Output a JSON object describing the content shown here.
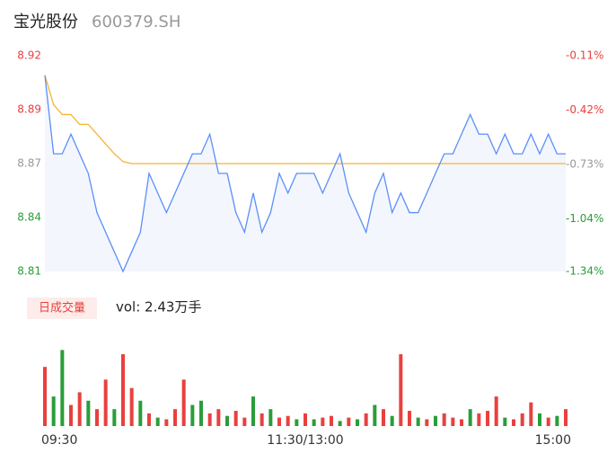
{
  "header": {
    "title": "宝光股份",
    "code": "600379.SH"
  },
  "chart_data": [
    {
      "type": "line",
      "x": [
        0,
        4,
        8,
        12,
        16,
        20,
        24,
        28,
        32,
        36,
        40,
        44,
        48,
        52,
        56,
        60,
        64,
        68,
        72,
        76,
        80,
        84,
        88,
        92,
        96,
        100,
        104,
        108,
        112,
        116,
        120,
        124,
        128,
        132,
        136,
        140,
        144,
        148,
        152,
        156,
        160,
        164,
        168,
        172,
        176,
        180,
        184,
        188,
        192,
        196,
        200,
        204,
        208,
        212,
        216,
        220,
        224,
        228,
        232,
        236,
        240
      ],
      "xlim": [
        0,
        240
      ],
      "ylim": [
        8.81,
        8.92
      ],
      "yticks": [
        {
          "value": 8.92,
          "label": "8.92"
        },
        {
          "value": 8.8925,
          "label": "8.89"
        },
        {
          "value": 8.865,
          "label": "8.87"
        },
        {
          "value": 8.8375,
          "label": "8.84"
        },
        {
          "value": 8.81,
          "label": "8.81"
        }
      ],
      "y2lim": [
        -1.34,
        -0.11
      ],
      "y2ticks": [
        {
          "value": -0.11,
          "label": "-0.11%"
        },
        {
          "value": -0.42,
          "label": "-0.42%"
        },
        {
          "value": -0.73,
          "label": "-0.73%"
        },
        {
          "value": -1.04,
          "label": "-1.04%"
        },
        {
          "value": -1.34,
          "label": "-1.34%"
        }
      ],
      "tick_colors": [
        "#e8413e",
        "#e8413e",
        "#999999",
        "#2a9d3a",
        "#2a9d3a"
      ],
      "area_color": "#f3f6fd",
      "series": [
        {
          "color": "#5b8ff9",
          "values": [
            8.91,
            8.87,
            8.87,
            8.88,
            8.87,
            8.86,
            8.84,
            8.83,
            8.82,
            8.81,
            8.82,
            8.83,
            8.86,
            8.85,
            8.84,
            8.85,
            8.86,
            8.87,
            8.87,
            8.88,
            8.86,
            8.86,
            8.84,
            8.83,
            8.85,
            8.83,
            8.84,
            8.86,
            8.85,
            8.86,
            8.86,
            8.86,
            8.85,
            8.86,
            8.87,
            8.85,
            8.84,
            8.83,
            8.85,
            8.86,
            8.84,
            8.85,
            8.84,
            8.84,
            8.85,
            8.86,
            8.87,
            8.87,
            8.88,
            8.89,
            8.88,
            8.88,
            8.87,
            8.88,
            8.87,
            8.87,
            8.88,
            8.87,
            8.88,
            8.87,
            8.87
          ]
        },
        {
          "color": "#f5b335",
          "values": [
            8.91,
            8.895,
            8.89,
            8.89,
            8.885,
            8.885,
            8.88,
            8.875,
            8.87,
            8.866,
            8.865,
            8.865,
            8.865,
            8.865,
            8.865,
            8.865,
            8.865,
            8.865,
            8.865,
            8.865,
            8.865,
            8.865,
            8.865,
            8.865,
            8.865,
            8.865,
            8.865,
            8.865,
            8.865,
            8.865,
            8.865,
            8.865,
            8.865,
            8.865,
            8.865,
            8.865,
            8.865,
            8.865,
            8.865,
            8.865,
            8.865,
            8.865,
            8.865,
            8.865,
            8.865,
            8.865,
            8.865,
            8.865,
            8.865,
            8.865,
            8.865,
            8.865,
            8.865,
            8.865,
            8.865,
            8.865,
            8.865,
            8.865,
            8.865,
            8.865,
            8.865
          ]
        }
      ]
    },
    {
      "type": "bar",
      "title": "日成交量",
      "subtitle": "vol: 2.43万手",
      "x": [
        0,
        4,
        8,
        12,
        16,
        20,
        24,
        28,
        32,
        36,
        40,
        44,
        48,
        52,
        56,
        60,
        64,
        68,
        72,
        76,
        80,
        84,
        88,
        92,
        96,
        100,
        104,
        108,
        112,
        116,
        120,
        124,
        128,
        132,
        136,
        140,
        144,
        148,
        152,
        156,
        160,
        164,
        168,
        172,
        176,
        180,
        184,
        188,
        192,
        196,
        200,
        204,
        208,
        212,
        216,
        220,
        224,
        228,
        232,
        236,
        240
      ],
      "xlim": [
        0,
        240
      ],
      "ylim": [
        0,
        100
      ],
      "xticks": [
        {
          "value": 0,
          "label": "09:30"
        },
        {
          "value": 120,
          "label": "11:30/13:00"
        },
        {
          "value": 240,
          "label": "15:00"
        }
      ],
      "values": [
        70,
        35,
        90,
        25,
        40,
        30,
        20,
        55,
        20,
        85,
        45,
        30,
        15,
        10,
        8,
        20,
        55,
        25,
        30,
        15,
        20,
        12,
        18,
        10,
        35,
        15,
        20,
        10,
        12,
        8,
        15,
        8,
        10,
        12,
        6,
        10,
        8,
        15,
        25,
        20,
        12,
        85,
        18,
        10,
        8,
        12,
        15,
        10,
        8,
        20,
        15,
        18,
        35,
        10,
        8,
        15,
        28,
        15,
        10,
        12,
        20
      ],
      "colors": [
        "#e8413e",
        "#2a9d3a",
        "#2a9d3a",
        "#e8413e",
        "#e8413e",
        "#2a9d3a",
        "#e8413e",
        "#e8413e",
        "#2a9d3a",
        "#e8413e",
        "#e8413e",
        "#2a9d3a",
        "#e8413e",
        "#2a9d3a",
        "#e8413e",
        "#e8413e",
        "#e8413e",
        "#2a9d3a",
        "#2a9d3a",
        "#e8413e",
        "#e8413e",
        "#2a9d3a",
        "#e8413e",
        "#e8413e",
        "#2a9d3a",
        "#e8413e",
        "#2a9d3a",
        "#e8413e",
        "#e8413e",
        "#2a9d3a",
        "#e8413e",
        "#2a9d3a",
        "#e8413e",
        "#e8413e",
        "#2a9d3a",
        "#e8413e",
        "#2a9d3a",
        "#e8413e",
        "#2a9d3a",
        "#e8413e",
        "#2a9d3a",
        "#e8413e",
        "#e8413e",
        "#2a9d3a",
        "#e8413e",
        "#2a9d3a",
        "#e8413e",
        "#e8413e",
        "#e8413e",
        "#2a9d3a",
        "#e8413e",
        "#e8413e",
        "#e8413e",
        "#2a9d3a",
        "#e8413e",
        "#e8413e",
        "#e8413e",
        "#2a9d3a",
        "#e8413e",
        "#2a9d3a",
        "#e8413e"
      ]
    }
  ]
}
